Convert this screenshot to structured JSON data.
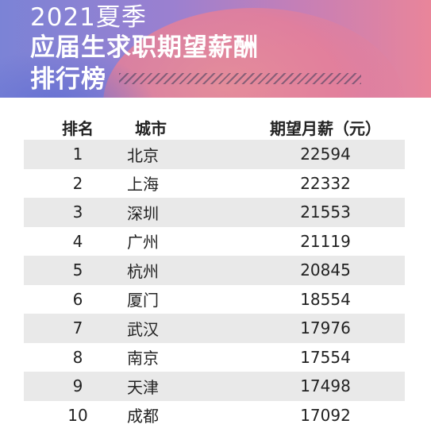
{
  "title": {
    "line1": "2021夏季",
    "line2": "应届生求职期望薪酬",
    "line3": "排行榜"
  },
  "chart_data": {
    "type": "table",
    "columns": [
      "排名",
      "城市",
      "期望月薪（元）"
    ],
    "rows": [
      {
        "rank": "1",
        "city": "北京",
        "salary": "22594"
      },
      {
        "rank": "2",
        "city": "上海",
        "salary": "22332"
      },
      {
        "rank": "3",
        "city": "深圳",
        "salary": "21553"
      },
      {
        "rank": "4",
        "city": "广州",
        "salary": "21119"
      },
      {
        "rank": "5",
        "city": "杭州",
        "salary": "20845"
      },
      {
        "rank": "6",
        "city": "厦门",
        "salary": "18554"
      },
      {
        "rank": "7",
        "city": "武汉",
        "salary": "17976"
      },
      {
        "rank": "8",
        "city": "南京",
        "salary": "17554"
      },
      {
        "rank": "9",
        "city": "天津",
        "salary": "17498"
      },
      {
        "rank": "10",
        "city": "成都",
        "salary": "17092"
      }
    ]
  },
  "colors": {
    "row_shade": "#e9e9e9",
    "banner_left": "#7b83d6",
    "banner_right": "#e9859a"
  }
}
